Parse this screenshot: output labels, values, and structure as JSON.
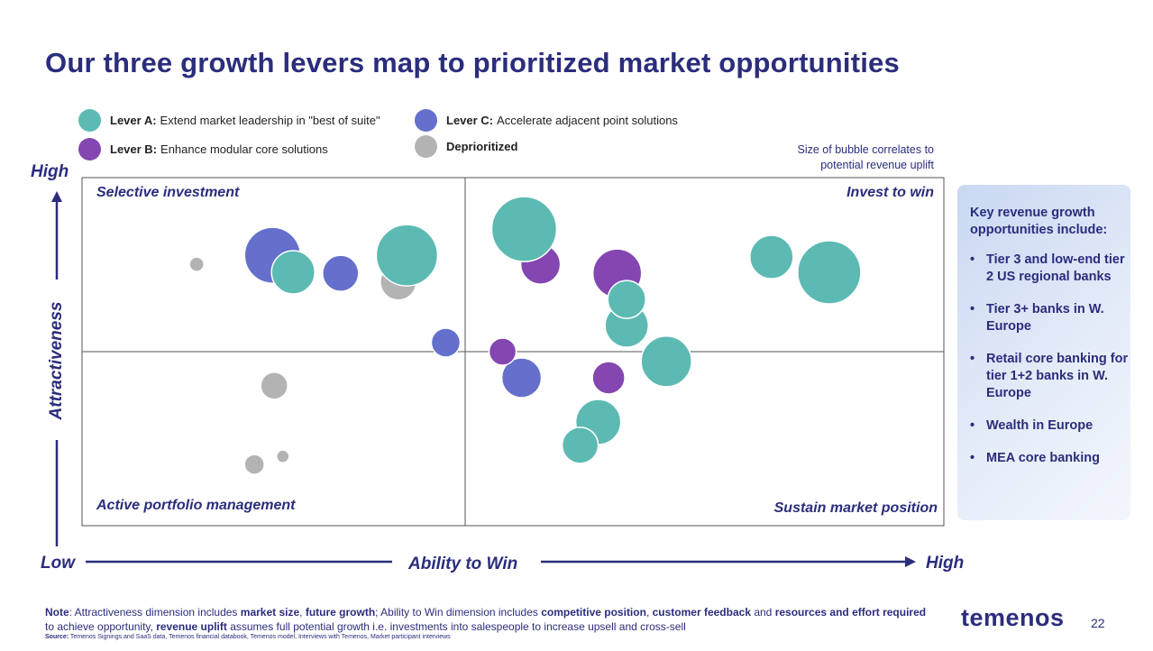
{
  "title": "Our three growth levers map to prioritized market opportunities",
  "legend": [
    {
      "key": "A",
      "bold": "Lever A:",
      "text": "Extend market leadership in \"best of suite\"",
      "color": "#5cbab3"
    },
    {
      "key": "C",
      "bold": "Lever C:",
      "text": "Accelerate adjacent point solutions",
      "color": "#6470cc"
    },
    {
      "key": "B",
      "bold": "Lever B:",
      "text": "Enhance modular core solutions",
      "color": "#8446b0"
    },
    {
      "key": "D",
      "bold": "Deprioritized",
      "text": "",
      "color": "#b3b3b3"
    }
  ],
  "size_note": [
    "Size of bubble correlates to",
    "potential revenue uplift"
  ],
  "y_axis": {
    "label": "Attractiveness",
    "high": "High"
  },
  "x_axis": {
    "label": "Ability to Win",
    "low": "Low",
    "high": "High"
  },
  "quadrants": {
    "top_left": "Selective investment",
    "top_right": "Invest to win",
    "bottom_left": "Active portfolio management",
    "bottom_right": "Sustain market position"
  },
  "chart_data": {
    "type": "scatter",
    "subtype": "bubble",
    "xlabel": "Ability to Win",
    "ylabel": "Attractiveness",
    "xlim": [
      0,
      100
    ],
    "ylim": [
      0,
      100
    ],
    "size_meaning": "potential revenue uplift (relative)",
    "dividers": {
      "x": 44,
      "y": 50
    },
    "points": [
      {
        "lever": "D",
        "x": 13.3,
        "y": 75.1,
        "size": 8
      },
      {
        "lever": "D",
        "x": 36.7,
        "y": 70.0,
        "size": 20
      },
      {
        "lever": "D",
        "x": 22.3,
        "y": 40.2,
        "size": 15
      },
      {
        "lever": "D",
        "x": 20.0,
        "y": 17.6,
        "size": 11
      },
      {
        "lever": "D",
        "x": 23.3,
        "y": 19.9,
        "size": 7
      },
      {
        "lever": "C",
        "x": 22.1,
        "y": 77.7,
        "size": 31
      },
      {
        "lever": "C",
        "x": 30.0,
        "y": 72.5,
        "size": 20
      },
      {
        "lever": "C",
        "x": 42.2,
        "y": 52.6,
        "size": 16
      },
      {
        "lever": "C",
        "x": 51.0,
        "y": 42.5,
        "size": 22
      },
      {
        "lever": "A",
        "x": 24.5,
        "y": 72.8,
        "size": 24
      },
      {
        "lever": "A",
        "x": 37.7,
        "y": 77.7,
        "size": 34
      },
      {
        "lever": "B",
        "x": 53.2,
        "y": 75.1,
        "size": 22
      },
      {
        "lever": "A",
        "x": 51.3,
        "y": 85.2,
        "size": 36
      },
      {
        "lever": "B",
        "x": 62.1,
        "y": 72.5,
        "size": 27
      },
      {
        "lever": "A",
        "x": 63.2,
        "y": 57.5,
        "size": 24
      },
      {
        "lever": "A",
        "x": 63.2,
        "y": 65.0,
        "size": 21
      },
      {
        "lever": "A",
        "x": 80.0,
        "y": 77.2,
        "size": 24
      },
      {
        "lever": "A",
        "x": 86.7,
        "y": 72.8,
        "size": 35
      },
      {
        "lever": "A",
        "x": 67.8,
        "y": 47.2,
        "size": 28
      },
      {
        "lever": "B",
        "x": 48.8,
        "y": 50.0,
        "size": 15
      },
      {
        "lever": "B",
        "x": 61.1,
        "y": 42.5,
        "size": 18
      },
      {
        "lever": "A",
        "x": 59.9,
        "y": 29.8,
        "size": 25
      },
      {
        "lever": "A",
        "x": 57.8,
        "y": 23.1,
        "size": 20
      }
    ]
  },
  "panel": {
    "heading": "Key revenue growth opportunities include:",
    "items": [
      "Tier 3 and low-end tier 2 US regional banks",
      "Tier 3+ banks in W. Europe",
      "Retail core banking for tier 1+2 banks in W. Europe",
      "Wealth in Europe",
      "MEA core banking"
    ]
  },
  "note": {
    "parts": [
      {
        "b": true,
        "t": "Note"
      },
      {
        "b": false,
        "t": ": Attractiveness dimension includes "
      },
      {
        "b": true,
        "t": "market size"
      },
      {
        "b": false,
        "t": ", "
      },
      {
        "b": true,
        "t": "future growth"
      },
      {
        "b": false,
        "t": "; Ability to Win dimension includes "
      },
      {
        "b": true,
        "t": "competitive position"
      },
      {
        "b": false,
        "t": ", "
      },
      {
        "b": true,
        "t": "customer feedback"
      },
      {
        "b": false,
        "t": " and "
      },
      {
        "b": true,
        "t": "resources and effort required"
      },
      {
        "b": false,
        "t": " to achieve opportunity, "
      },
      {
        "b": true,
        "t": "revenue uplift"
      },
      {
        "b": false,
        "t": " assumes full potential growth i.e. investments into salespeople to increase upsell and cross-sell"
      }
    ]
  },
  "source": {
    "label": "Source:",
    "text": "Temenos Signings and SaaS data, Temenos financial databook, Temenos model, Interviews with Temenos, Market participant interviews"
  },
  "logo": "temenos",
  "page_number": "22"
}
